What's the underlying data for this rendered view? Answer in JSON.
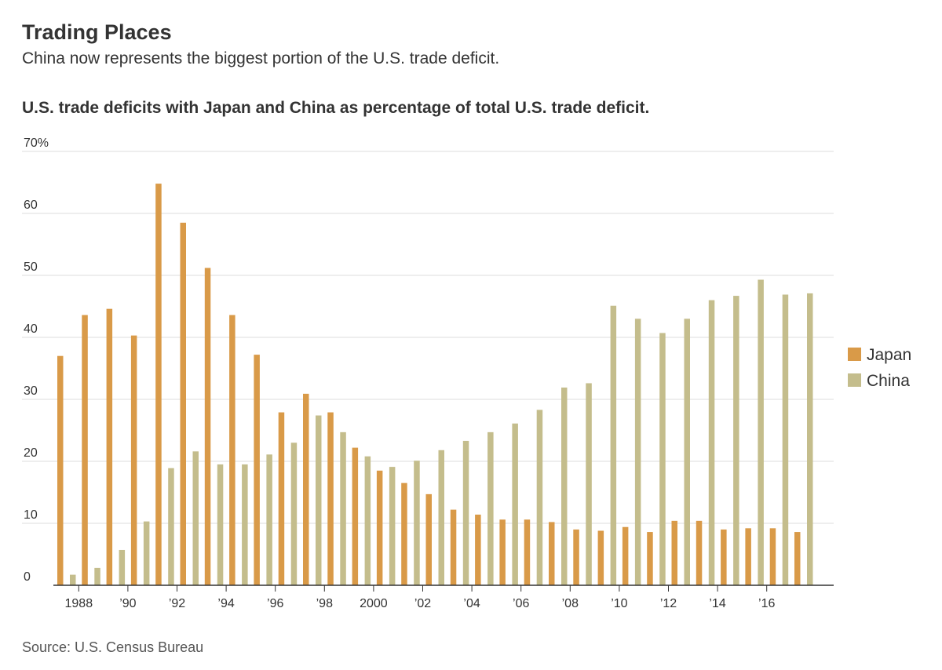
{
  "header": {
    "title": "Trading Places",
    "subtitle": "China now represents the biggest portion of the U.S. trade deficit."
  },
  "footer": {
    "source": "Source: U.S. Census Bureau"
  },
  "colors": {
    "japan": "#d99a48",
    "china": "#c4bd8c",
    "grid": "#dddddd",
    "axis": "#333333"
  },
  "chart_data": {
    "type": "bar",
    "title": "U.S. trade deficits with Japan and China as percentage of total U.S. trade deficit.",
    "xlabel": "",
    "ylabel": "",
    "ylim": [
      0,
      70
    ],
    "grid": true,
    "legend_position": "right",
    "y_ticks": [
      {
        "value": 0,
        "label": "0"
      },
      {
        "value": 10,
        "label": "10"
      },
      {
        "value": 20,
        "label": "20"
      },
      {
        "value": 30,
        "label": "30"
      },
      {
        "value": 40,
        "label": "40"
      },
      {
        "value": 50,
        "label": "50"
      },
      {
        "value": 60,
        "label": "60"
      },
      {
        "value": 70,
        "label": "70%"
      }
    ],
    "categories": [
      1987,
      1988,
      1989,
      1990,
      1991,
      1992,
      1993,
      1994,
      1995,
      1996,
      1997,
      1998,
      1999,
      2000,
      2001,
      2002,
      2003,
      2004,
      2005,
      2006,
      2007,
      2008,
      2009,
      2010,
      2011,
      2012,
      2013,
      2014,
      2015,
      2016,
      2017
    ],
    "x_tick_labels": [
      {
        "year": 1988,
        "label": "1988"
      },
      {
        "year": 1990,
        "label": "’90"
      },
      {
        "year": 1992,
        "label": "’92"
      },
      {
        "year": 1994,
        "label": "’94"
      },
      {
        "year": 1996,
        "label": "’96"
      },
      {
        "year": 1998,
        "label": "’98"
      },
      {
        "year": 2000,
        "label": "2000"
      },
      {
        "year": 2002,
        "label": "’02"
      },
      {
        "year": 2004,
        "label": "’04"
      },
      {
        "year": 2006,
        "label": "’06"
      },
      {
        "year": 2008,
        "label": "’08"
      },
      {
        "year": 2010,
        "label": "’10"
      },
      {
        "year": 2012,
        "label": "’12"
      },
      {
        "year": 2014,
        "label": "’14"
      },
      {
        "year": 2016,
        "label": "’16"
      }
    ],
    "series": [
      {
        "name": "Japan",
        "color": "#d99a48",
        "values": [
          37.0,
          43.6,
          44.6,
          40.3,
          64.8,
          58.5,
          51.2,
          43.6,
          37.2,
          27.9,
          30.9,
          27.9,
          22.2,
          18.5,
          16.5,
          14.7,
          12.2,
          11.4,
          10.6,
          10.6,
          10.2,
          9.0,
          8.8,
          9.4,
          8.6,
          10.4,
          10.4,
          9.0,
          9.2,
          9.2,
          8.6
        ]
      },
      {
        "name": "China",
        "color": "#c4bd8c",
        "values": [
          1.7,
          2.8,
          5.7,
          10.3,
          18.9,
          21.6,
          19.5,
          19.5,
          21.1,
          23.0,
          27.4,
          24.7,
          20.8,
          19.1,
          20.1,
          21.8,
          23.3,
          24.7,
          26.1,
          28.3,
          31.9,
          32.6,
          45.1,
          43.0,
          40.7,
          43.0,
          46.0,
          46.7,
          49.3,
          46.9,
          47.1
        ]
      }
    ]
  }
}
